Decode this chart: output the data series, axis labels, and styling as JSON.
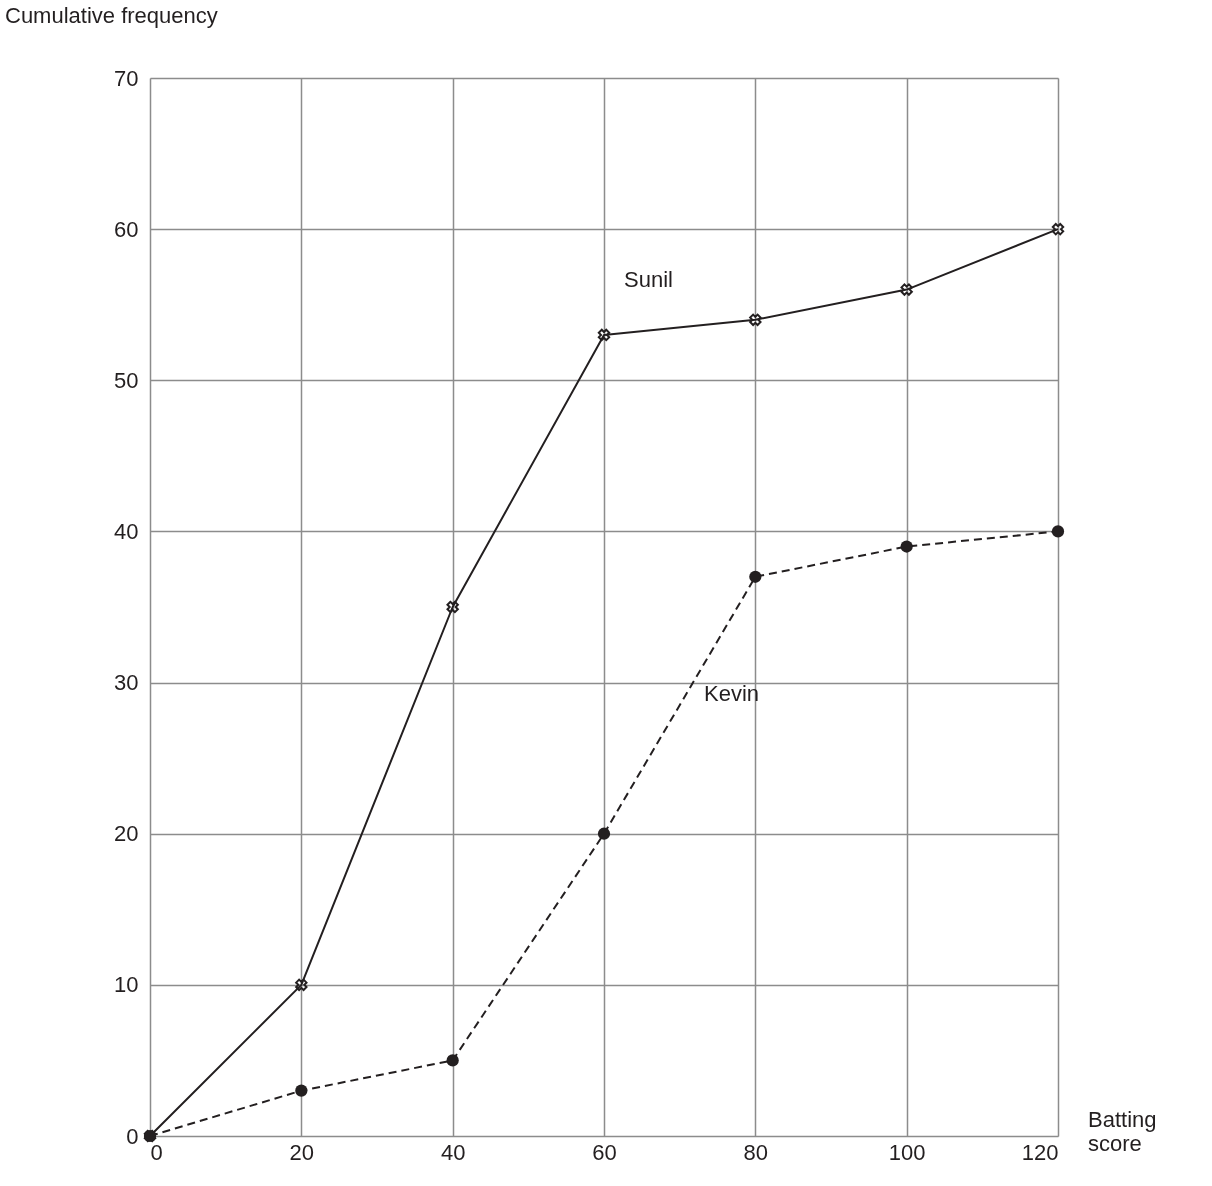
{
  "chart_data": {
    "type": "line",
    "xlabel": "Batting score",
    "ylabel": "Cumulative frequency",
    "x": [
      0,
      20,
      40,
      60,
      80,
      100,
      120
    ],
    "series": [
      {
        "name": "Sunil",
        "color": "#231f20",
        "values": [
          0,
          10,
          35,
          53,
          54,
          56,
          60
        ],
        "marker": "cross",
        "line_style": "solid"
      },
      {
        "name": "Kevin",
        "color": "#231f20",
        "values": [
          0,
          3,
          5,
          20,
          37,
          39,
          40
        ],
        "marker": "circle",
        "line_style": "dashed"
      }
    ],
    "xlim": [
      0,
      120
    ],
    "xticks": [
      0,
      20,
      40,
      60,
      80,
      100,
      120
    ],
    "ylim": [
      0,
      70
    ],
    "yticks": [
      0,
      10,
      20,
      30,
      40,
      50,
      60,
      70
    ],
    "grid": true
  }
}
